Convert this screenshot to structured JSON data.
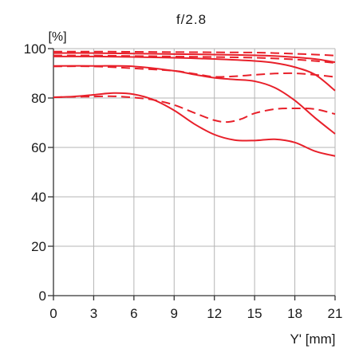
{
  "chart_data": {
    "type": "line",
    "title": "f/2.8",
    "xlabel": "Y' [mm]",
    "ylabel": "[%]",
    "xlim": [
      0,
      21
    ],
    "ylim": [
      0,
      100
    ],
    "x_ticks": [
      "0",
      "3",
      "6",
      "9",
      "12",
      "15",
      "18",
      "21"
    ],
    "y_ticks": [
      "0",
      "20",
      "40",
      "60",
      "80",
      "100"
    ],
    "grid": true,
    "legend": "none",
    "colors": {
      "curve": "#e8202a",
      "grid": "#b5b5b5",
      "axis": "#333333"
    },
    "series": [
      {
        "style": "solid",
        "x": [
          0,
          3,
          6,
          9,
          12,
          15,
          16.5,
          18,
          19.5,
          21
        ],
        "y": [
          98.2,
          98.2,
          98.0,
          97.8,
          97.6,
          97.3,
          97.0,
          96.5,
          95.8,
          94.5
        ]
      },
      {
        "style": "dashed",
        "x": [
          0,
          3,
          6,
          9,
          12,
          15,
          16.5,
          18,
          19.5,
          21
        ],
        "y": [
          98.8,
          98.8,
          98.7,
          98.6,
          98.5,
          98.4,
          98.2,
          97.9,
          97.6,
          97.2
        ]
      },
      {
        "style": "solid",
        "x": [
          0,
          3,
          6,
          9,
          12,
          15,
          16.5,
          18,
          19.5,
          21
        ],
        "y": [
          96.8,
          96.8,
          96.6,
          96.3,
          95.8,
          95.0,
          94.2,
          92.5,
          89.5,
          83.0
        ]
      },
      {
        "style": "dashed",
        "x": [
          0,
          3,
          6,
          9,
          12,
          15,
          16.5,
          18,
          19.5,
          21
        ],
        "y": [
          97.2,
          97.2,
          97.0,
          96.8,
          96.6,
          96.3,
          96.0,
          95.6,
          95.0,
          94.2
        ]
      },
      {
        "style": "solid",
        "x": [
          0,
          3,
          6,
          9,
          10.5,
          12,
          13.5,
          15,
          16.5,
          18,
          19.5,
          21
        ],
        "y": [
          93.0,
          93.0,
          92.8,
          91.0,
          89.5,
          88.2,
          87.5,
          86.8,
          84.2,
          79.0,
          72.0,
          65.5
        ]
      },
      {
        "style": "dashed",
        "x": [
          0,
          3,
          6,
          9,
          10.5,
          12,
          13.5,
          15,
          16.5,
          18,
          19.5,
          21
        ],
        "y": [
          92.8,
          92.8,
          92.0,
          91.0,
          89.8,
          88.6,
          88.8,
          89.4,
          89.9,
          90.0,
          89.4,
          88.5
        ]
      },
      {
        "style": "solid",
        "x": [
          0,
          1.5,
          3,
          4.5,
          6,
          7.5,
          9,
          10.5,
          12,
          13.5,
          15,
          16.5,
          18,
          19.5,
          21
        ],
        "y": [
          80.3,
          80.6,
          81.3,
          82.0,
          81.5,
          79.2,
          75.0,
          69.5,
          65.2,
          63.0,
          62.8,
          63.3,
          62.0,
          58.5,
          56.5
        ]
      },
      {
        "style": "dashed",
        "x": [
          0,
          1.5,
          3,
          4.5,
          6,
          7.5,
          9,
          10.5,
          12,
          13.0,
          14,
          15,
          16.5,
          18,
          19.5,
          21
        ],
        "y": [
          80.3,
          80.5,
          80.6,
          80.7,
          80.2,
          79.2,
          77.2,
          74.0,
          71.0,
          70.3,
          71.5,
          73.8,
          75.5,
          75.8,
          75.5,
          73.5
        ]
      }
    ]
  }
}
